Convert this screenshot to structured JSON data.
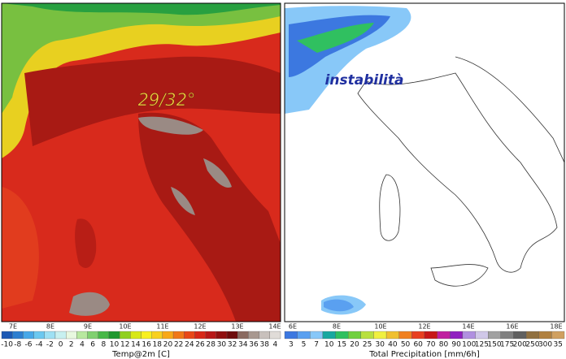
{
  "left_map": {
    "annotation": "29/32°",
    "lon_labels": [
      "7E",
      "8E",
      "9E",
      "10E",
      "11E",
      "12E",
      "13E",
      "14E"
    ],
    "colorbar_labels": [
      "-10",
      "-8",
      "-6",
      "-4",
      "-2",
      "0",
      "2",
      "4",
      "6",
      "8",
      "10",
      "12",
      "14",
      "16",
      "18",
      "20",
      "22",
      "24",
      "26",
      "28",
      "30",
      "32",
      "34",
      "36",
      "38",
      "4"
    ],
    "colorbar_colors": [
      "#1e5ab4",
      "#2e7fd0",
      "#48a8e8",
      "#6cc8f0",
      "#9ee0f4",
      "#c8f0f0",
      "#e8f8e0",
      "#b8e8a0",
      "#80d070",
      "#48b848",
      "#209830",
      "#90d020",
      "#d8e818",
      "#f8f020",
      "#f8d020",
      "#f8a818",
      "#f07818",
      "#e84818",
      "#d82818",
      "#b81818",
      "#901010",
      "#6e0c0c",
      "#8a6a60",
      "#a89890",
      "#c8c0bc",
      "#e0dcd8"
    ],
    "colorbar_title": "Temp@2m [C]"
  },
  "right_map": {
    "annotation": "instabilità",
    "lon_labels": [
      "6E",
      "8E",
      "10E",
      "12E",
      "14E",
      "16E",
      "18E"
    ],
    "colorbar_labels": [
      "3",
      "5",
      "7",
      "10",
      "15",
      "20",
      "25",
      "30",
      "40",
      "50",
      "60",
      "70",
      "80",
      "90",
      "100",
      "125",
      "150",
      "175",
      "200",
      "250",
      "300",
      "35"
    ],
    "colorbar_colors": [
      "#3c78e0",
      "#5aa0f0",
      "#88c8f8",
      "#18a8a0",
      "#30c060",
      "#70d040",
      "#b8e040",
      "#f0f040",
      "#f0c030",
      "#f08020",
      "#e84020",
      "#c81818",
      "#c020a0",
      "#9020c0",
      "#b090e0",
      "#d0c8e8",
      "#a0a0a0",
      "#808080",
      "#606060",
      "#907040",
      "#b08040",
      "#d0a060"
    ],
    "colorbar_title": "Total Precipitation [mm/6h]"
  }
}
